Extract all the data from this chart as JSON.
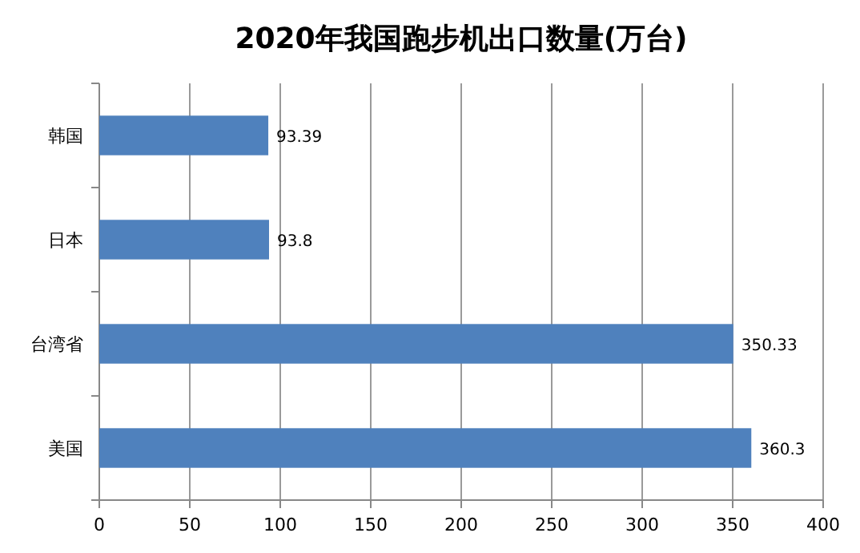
{
  "chart_data": {
    "type": "bar",
    "orientation": "horizontal",
    "title": "2020年我国跑步机出口数量(万台)",
    "categories": [
      "韩国",
      "日本",
      "台湾省",
      "美国"
    ],
    "values": [
      93.39,
      93.8,
      350.33,
      360.3
    ],
    "color": "#4f81bd",
    "xlim": [
      0,
      400
    ],
    "xticks": [
      0,
      50,
      100,
      150,
      200,
      250,
      300,
      350,
      400
    ],
    "grid": "x",
    "data_labels": true
  }
}
